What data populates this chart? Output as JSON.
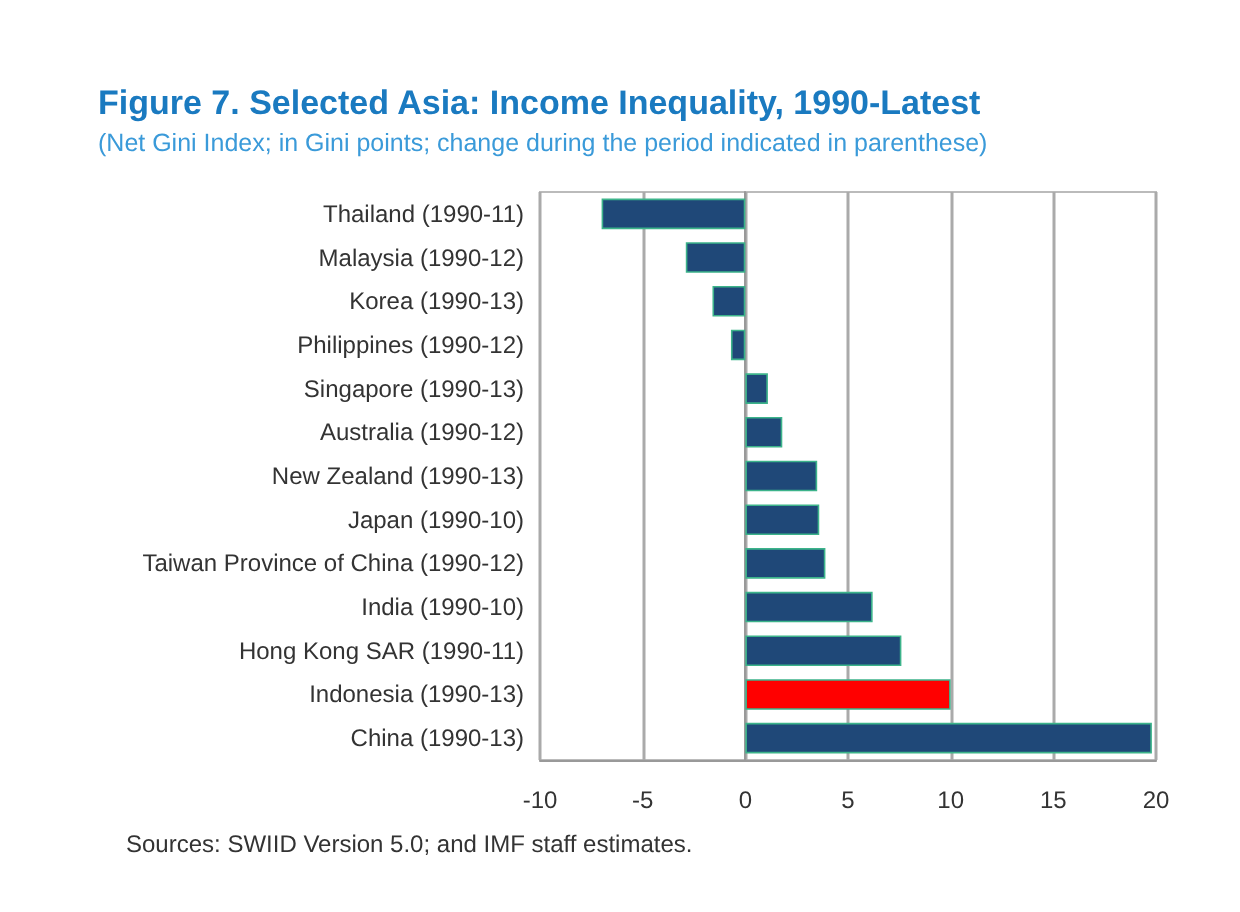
{
  "chart_data": {
    "type": "bar",
    "orientation": "horizontal",
    "title": "Figure 7. Selected Asia: Income Inequality, 1990-Latest",
    "subtitle": "(Net Gini Index; in Gini points; change during the period indicated in parenthese)",
    "categories": [
      "Thailand (1990-11)",
      "Malaysia (1990-12)",
      "Korea (1990-13)",
      "Philippines (1990-12)",
      "Singapore (1990-13)",
      "Australia (1990-12)",
      "New Zealand (1990-13)",
      "Japan (1990-10)",
      "Taiwan Province of China (1990-12)",
      "India (1990-10)",
      "Hong Kong SAR (1990-11)",
      "Indonesia (1990-13)",
      "China (1990-13)"
    ],
    "values": [
      -7.0,
      -2.9,
      -1.6,
      -0.7,
      1.1,
      1.8,
      3.5,
      3.6,
      3.9,
      6.2,
      7.6,
      10.0,
      19.8
    ],
    "colors": [
      "#1f4878",
      "#1f4878",
      "#1f4878",
      "#1f4878",
      "#1f4878",
      "#1f4878",
      "#1f4878",
      "#1f4878",
      "#1f4878",
      "#1f4878",
      "#1f4878",
      "#ff0000",
      "#1f4878"
    ],
    "xlim": [
      -10,
      20
    ],
    "xticks": [
      -10,
      -5,
      0,
      5,
      10,
      15,
      20
    ],
    "grid": "x",
    "annotations": [
      "Sources: SWIID Version 5.0; and IMF staff estimates."
    ]
  }
}
